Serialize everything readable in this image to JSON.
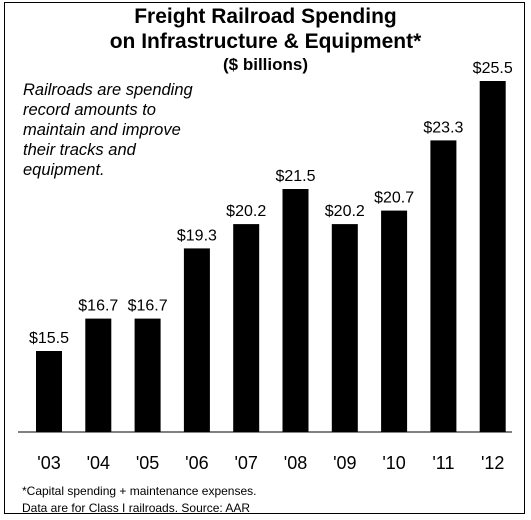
{
  "chart_data": {
    "type": "bar",
    "title": "Freight Railroad Spending",
    "title_line2": "on Infrastructure & Equipment*",
    "subtitle": "($ billions)",
    "annotation": "Railroads are spending record amounts to maintain and improve their tracks and equipment.",
    "annotation_lines": [
      "Railroads are spending",
      "record amounts to",
      "maintain and improve",
      "their tracks and",
      "equipment."
    ],
    "categories": [
      "'03",
      "'04",
      "'05",
      "'06",
      "'07",
      "'08",
      "'09",
      "'10",
      "'11",
      "'12"
    ],
    "values": [
      15.5,
      16.7,
      16.7,
      19.3,
      20.2,
      21.5,
      20.2,
      20.7,
      23.3,
      25.5
    ],
    "value_labels": [
      "$15.5",
      "$16.7",
      "$16.7",
      "$19.3",
      "$20.2",
      "$21.5",
      "$20.2",
      "$20.7",
      "$23.3",
      "$25.5"
    ],
    "bar_color": "#000000",
    "grid": false,
    "legend": "none",
    "footnote_lines": [
      "*Capital spending + maintenance expenses.",
      "Data are for Class I railroads.  Source: AAR"
    ]
  }
}
